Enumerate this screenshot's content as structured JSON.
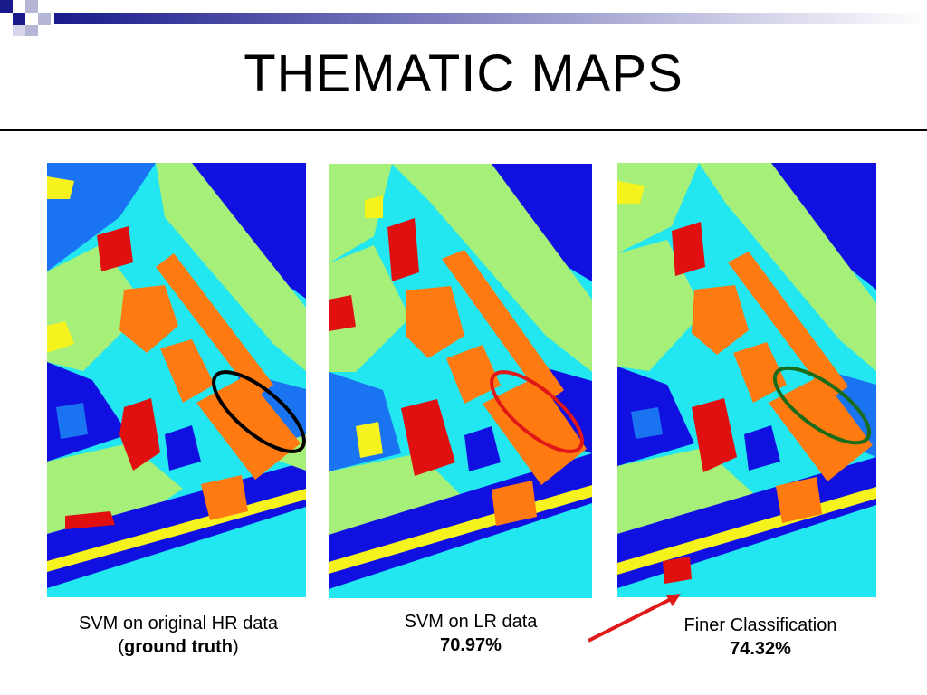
{
  "slide": {
    "title": "THEMATIC MAPS"
  },
  "colors": {
    "dark_blue": "#1010e0",
    "mid_blue": "#1a73f0",
    "cyan": "#22e6f0",
    "light_green": "#a6f07a",
    "yellow": "#f5f21e",
    "orange": "#ff7a10",
    "red": "#e01010",
    "deco_navy": "#1a1a8c",
    "ellipse_black": "#000000",
    "ellipse_red": "#e01818",
    "ellipse_green": "#1a6b1a",
    "arrow_red": "#e01818"
  },
  "maps": [
    {
      "id": "ground-truth",
      "caption_line1": "SVM on original HR data",
      "caption_open": "(",
      "caption_bold": "ground truth",
      "caption_close": ")"
    },
    {
      "id": "lr",
      "caption_line1": "SVM on LR data",
      "caption_bold": "70.97%"
    },
    {
      "id": "finer",
      "caption_line1": "Finer Classification",
      "caption_bold": "74.32%"
    }
  ]
}
